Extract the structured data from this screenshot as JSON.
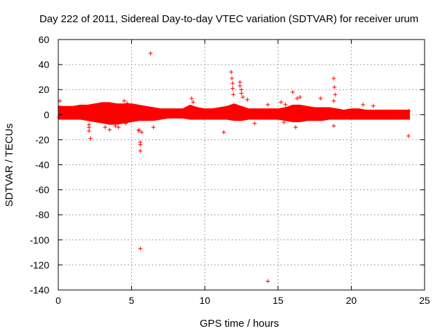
{
  "chart_data": {
    "type": "scatter",
    "title": "Day 222 of 2011, Sidereal Day-to-day VTEC variation (SDTVAR) for receiver urum",
    "xlabel": "GPS time / hours",
    "ylabel": "SDTVAR / TECUs",
    "xlim": [
      0,
      25
    ],
    "ylim": [
      -140,
      60
    ],
    "x_ticks": [
      0,
      5,
      10,
      15,
      20,
      25
    ],
    "y_ticks": [
      60,
      40,
      20,
      0,
      -20,
      -40,
      -60,
      -80,
      -100,
      -120,
      -140
    ],
    "grid": true,
    "marker": "+",
    "color": "#ff0000",
    "dense_band": {
      "x": [
        0,
        0.5,
        1,
        1.5,
        2,
        2.5,
        3,
        3.5,
        4,
        4.5,
        5,
        5.5,
        6,
        6.5,
        7,
        7.5,
        8,
        8.5,
        9,
        9.5,
        10,
        10.5,
        11,
        11.5,
        12,
        12.5,
        13,
        13.5,
        14,
        14.5,
        15,
        15.5,
        16,
        16.5,
        17,
        17.5,
        18,
        18.5,
        19,
        19.5,
        20,
        20.5,
        21,
        21.5,
        22,
        22.5,
        23,
        23.5,
        24
      ],
      "upper": [
        7,
        7,
        7,
        8,
        8,
        9,
        10,
        10,
        9,
        9,
        9,
        8,
        7,
        6,
        5,
        5,
        5,
        5,
        8,
        6,
        5,
        5,
        6,
        7,
        9,
        7,
        5,
        5,
        5,
        5,
        5,
        6,
        8,
        8,
        7,
        6,
        6,
        6,
        5,
        4,
        5,
        5,
        4,
        4,
        4,
        4,
        4,
        4,
        4
      ],
      "lower": [
        -4,
        -4,
        -4,
        -4,
        -5,
        -6,
        -7,
        -8,
        -8,
        -7,
        -6,
        -5,
        -5,
        -5,
        -4,
        -3,
        -3,
        -3,
        -4,
        -4,
        -4,
        -4,
        -4,
        -4,
        -5,
        -5,
        -4,
        -4,
        -4,
        -4,
        -4,
        -5,
        -6,
        -6,
        -5,
        -5,
        -5,
        -4,
        -4,
        -4,
        -4,
        -4,
        -4,
        -4,
        -4,
        -4,
        -4,
        -4,
        -4
      ]
    },
    "points": [
      {
        "x": 0.1,
        "y": 11
      },
      {
        "x": 0.05,
        "y": -2
      },
      {
        "x": 0.1,
        "y": 6
      },
      {
        "x": 2.1,
        "y": -8
      },
      {
        "x": 2.1,
        "y": -10
      },
      {
        "x": 2.1,
        "y": -13
      },
      {
        "x": 2.2,
        "y": -19
      },
      {
        "x": 3.2,
        "y": -10
      },
      {
        "x": 3.5,
        "y": -12
      },
      {
        "x": 3.9,
        "y": -9
      },
      {
        "x": 4.1,
        "y": -10
      },
      {
        "x": 4.5,
        "y": 11
      },
      {
        "x": 4.6,
        "y": -7
      },
      {
        "x": 4.7,
        "y": 9
      },
      {
        "x": 5.5,
        "y": -12
      },
      {
        "x": 5.5,
        "y": -13
      },
      {
        "x": 5.6,
        "y": -22
      },
      {
        "x": 5.6,
        "y": -29
      },
      {
        "x": 5.6,
        "y": -24
      },
      {
        "x": 5.7,
        "y": -14
      },
      {
        "x": 5.6,
        "y": -107
      },
      {
        "x": 6.3,
        "y": 49
      },
      {
        "x": 6.5,
        "y": -10
      },
      {
        "x": 9.1,
        "y": 13
      },
      {
        "x": 9.2,
        "y": 10
      },
      {
        "x": 11.3,
        "y": -14
      },
      {
        "x": 11.8,
        "y": 34
      },
      {
        "x": 11.85,
        "y": 29
      },
      {
        "x": 11.9,
        "y": 25
      },
      {
        "x": 11.9,
        "y": 21
      },
      {
        "x": 11.95,
        "y": 16
      },
      {
        "x": 12.4,
        "y": 26
      },
      {
        "x": 12.4,
        "y": 23
      },
      {
        "x": 12.5,
        "y": 17
      },
      {
        "x": 12.5,
        "y": 20
      },
      {
        "x": 12.6,
        "y": 14
      },
      {
        "x": 12.9,
        "y": 12
      },
      {
        "x": 13.4,
        "y": -7
      },
      {
        "x": 14.3,
        "y": -133
      },
      {
        "x": 14.3,
        "y": 8
      },
      {
        "x": 15.2,
        "y": 10
      },
      {
        "x": 15.5,
        "y": 8
      },
      {
        "x": 15.4,
        "y": -6
      },
      {
        "x": 16.0,
        "y": 18
      },
      {
        "x": 16.3,
        "y": 13
      },
      {
        "x": 16.5,
        "y": 14
      },
      {
        "x": 16.2,
        "y": -10
      },
      {
        "x": 17.9,
        "y": 13
      },
      {
        "x": 18.8,
        "y": 29
      },
      {
        "x": 18.85,
        "y": 22
      },
      {
        "x": 18.9,
        "y": 16
      },
      {
        "x": 18.8,
        "y": 11
      },
      {
        "x": 18.8,
        "y": -9
      },
      {
        "x": 20.8,
        "y": 8
      },
      {
        "x": 21.5,
        "y": 7
      },
      {
        "x": 23.9,
        "y": -17
      },
      {
        "x": 23.9,
        "y": 3
      }
    ]
  }
}
